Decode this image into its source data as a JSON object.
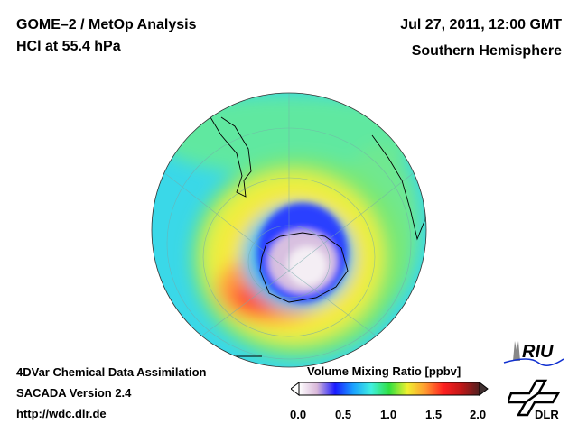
{
  "header": {
    "title": "GOME–2 / MetOp Analysis",
    "subtitle": "HCl at 55.4 hPa",
    "datetime": "Jul 27, 2011, 12:00 GMT",
    "region": "Southern Hemisphere"
  },
  "footer": {
    "line1": "4DVar Chemical Data Assimilation",
    "line2": "SACADA Version 2.4",
    "url": "http://wdc.dlr.de"
  },
  "colorbar": {
    "title": "Volume Mixing Ratio [ppbv]",
    "ticks": [
      "0.0",
      "0.5",
      "1.0",
      "1.5",
      "2.0"
    ],
    "range": [
      0.0,
      2.0
    ],
    "colors": [
      "#ffffff",
      "#d9b8d9",
      "#1a1aff",
      "#1aa0ff",
      "#40f0e0",
      "#30e040",
      "#f0f030",
      "#ff9a30",
      "#ff2020",
      "#c01818",
      "#502020"
    ]
  },
  "logos": {
    "riu": "RIU",
    "dlr": "DLR"
  }
}
